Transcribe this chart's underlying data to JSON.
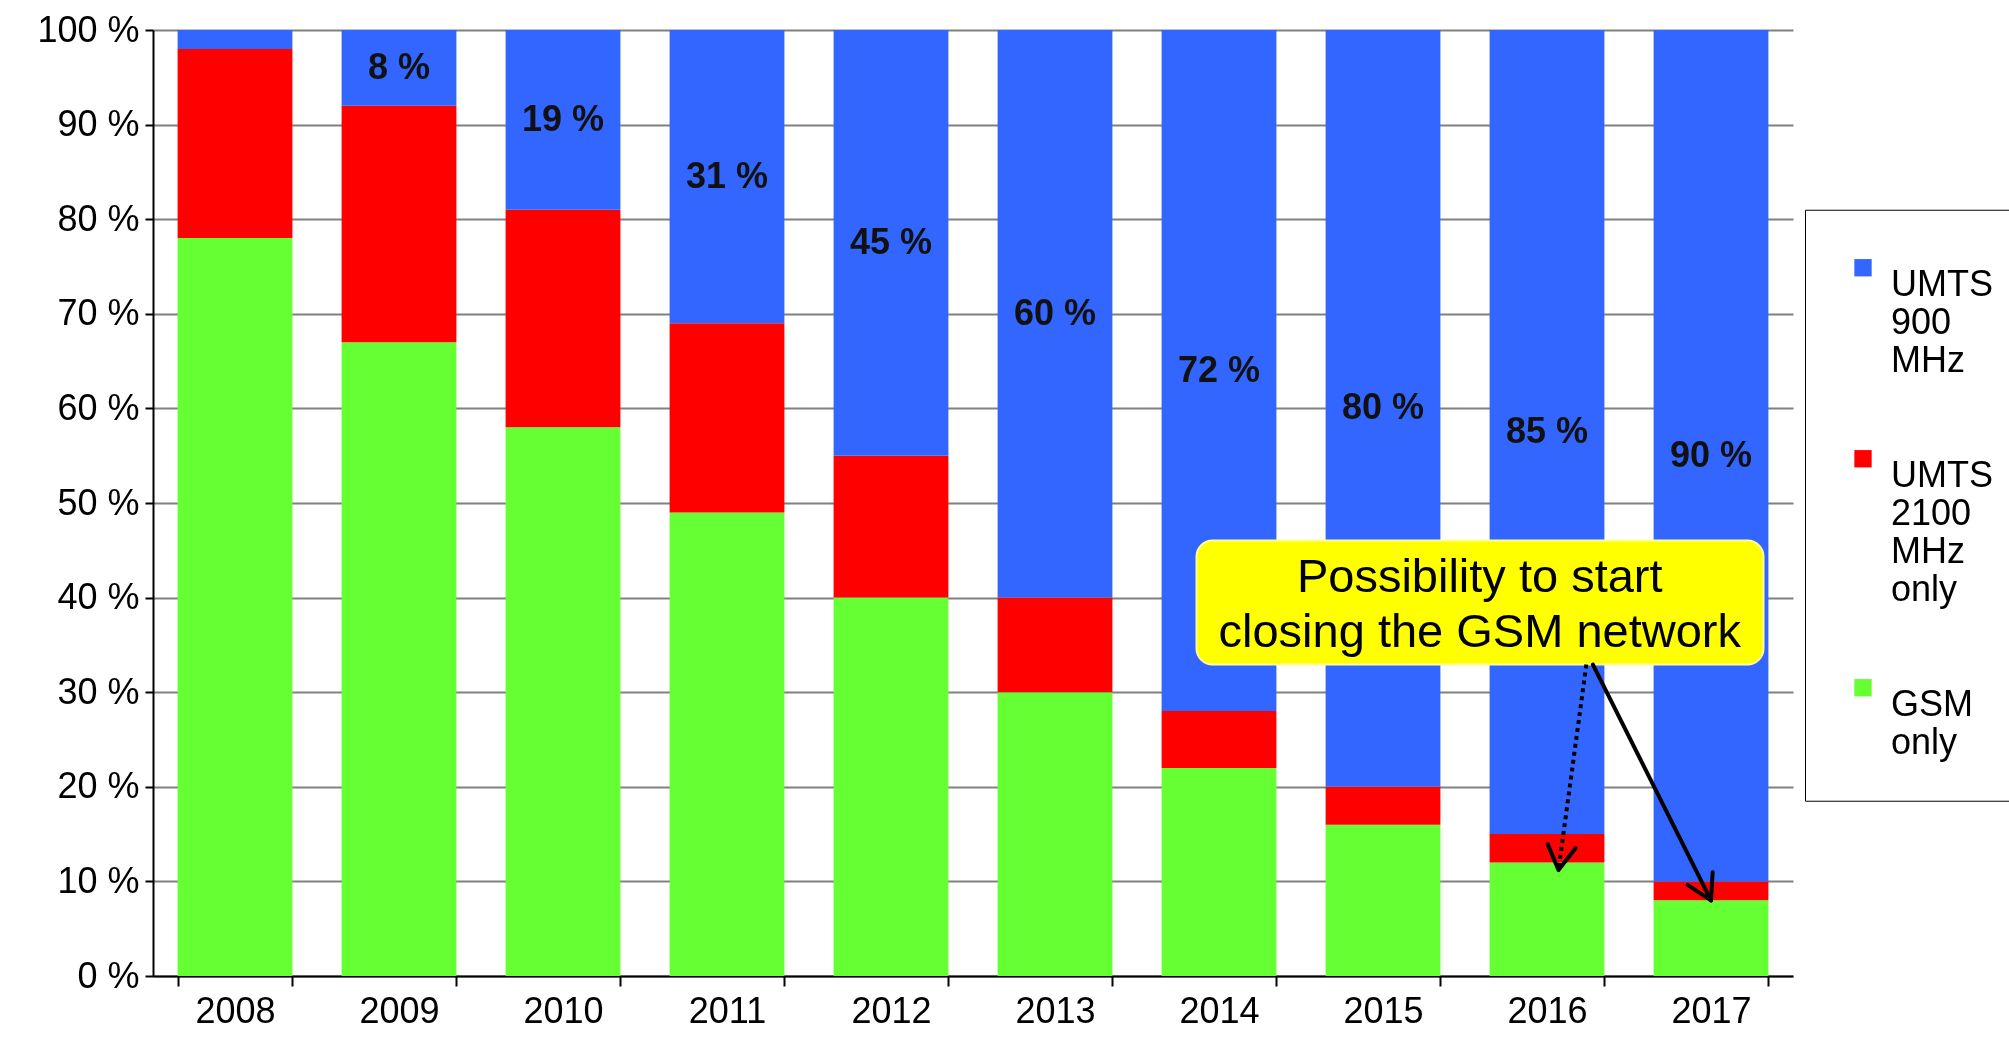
{
  "chart_data": {
    "type": "bar",
    "stacked": true,
    "categories": [
      "2008",
      "2009",
      "2010",
      "2011",
      "2012",
      "2013",
      "2014",
      "2015",
      "2016",
      "2017"
    ],
    "series": [
      {
        "name": "GSM only",
        "color": "#66ff33",
        "values": [
          78,
          67,
          58,
          49,
          40,
          30,
          22,
          16,
          12,
          8
        ]
      },
      {
        "name": "UMTS 2100 MHz only",
        "color": "#ff0000",
        "values": [
          20,
          25,
          23,
          20,
          15,
          10,
          6,
          4,
          3,
          2
        ]
      },
      {
        "name": "UMTS 900 MHz",
        "color": "#3366ff",
        "values": [
          2,
          8,
          19,
          31,
          45,
          60,
          72,
          80,
          85,
          90
        ],
        "value_labels": [
          null,
          "8 %",
          "19 %",
          "31 %",
          "45 %",
          "60 %",
          "72 %",
          "80 %",
          "85 %",
          "90 %"
        ]
      }
    ],
    "ylim": [
      0,
      100
    ],
    "yticks": [
      {
        "value": 0,
        "label": "0 %"
      },
      {
        "value": 10,
        "label": "10 %"
      },
      {
        "value": 20,
        "label": "20 %"
      },
      {
        "value": 30,
        "label": "30 %"
      },
      {
        "value": 40,
        "label": "40 %"
      },
      {
        "value": 50,
        "label": "50 %"
      },
      {
        "value": 60,
        "label": "60 %"
      },
      {
        "value": 70,
        "label": "70 %"
      },
      {
        "value": 80,
        "label": "80 %"
      },
      {
        "value": 90,
        "label": "90 %"
      },
      {
        "value": 100,
        "label": "100 %"
      }
    ],
    "grid": "y",
    "legend": "right",
    "annotations": [
      {
        "text": "Possibility to start closing the GSM network",
        "x": "2017",
        "y": 8
      }
    ]
  }
}
